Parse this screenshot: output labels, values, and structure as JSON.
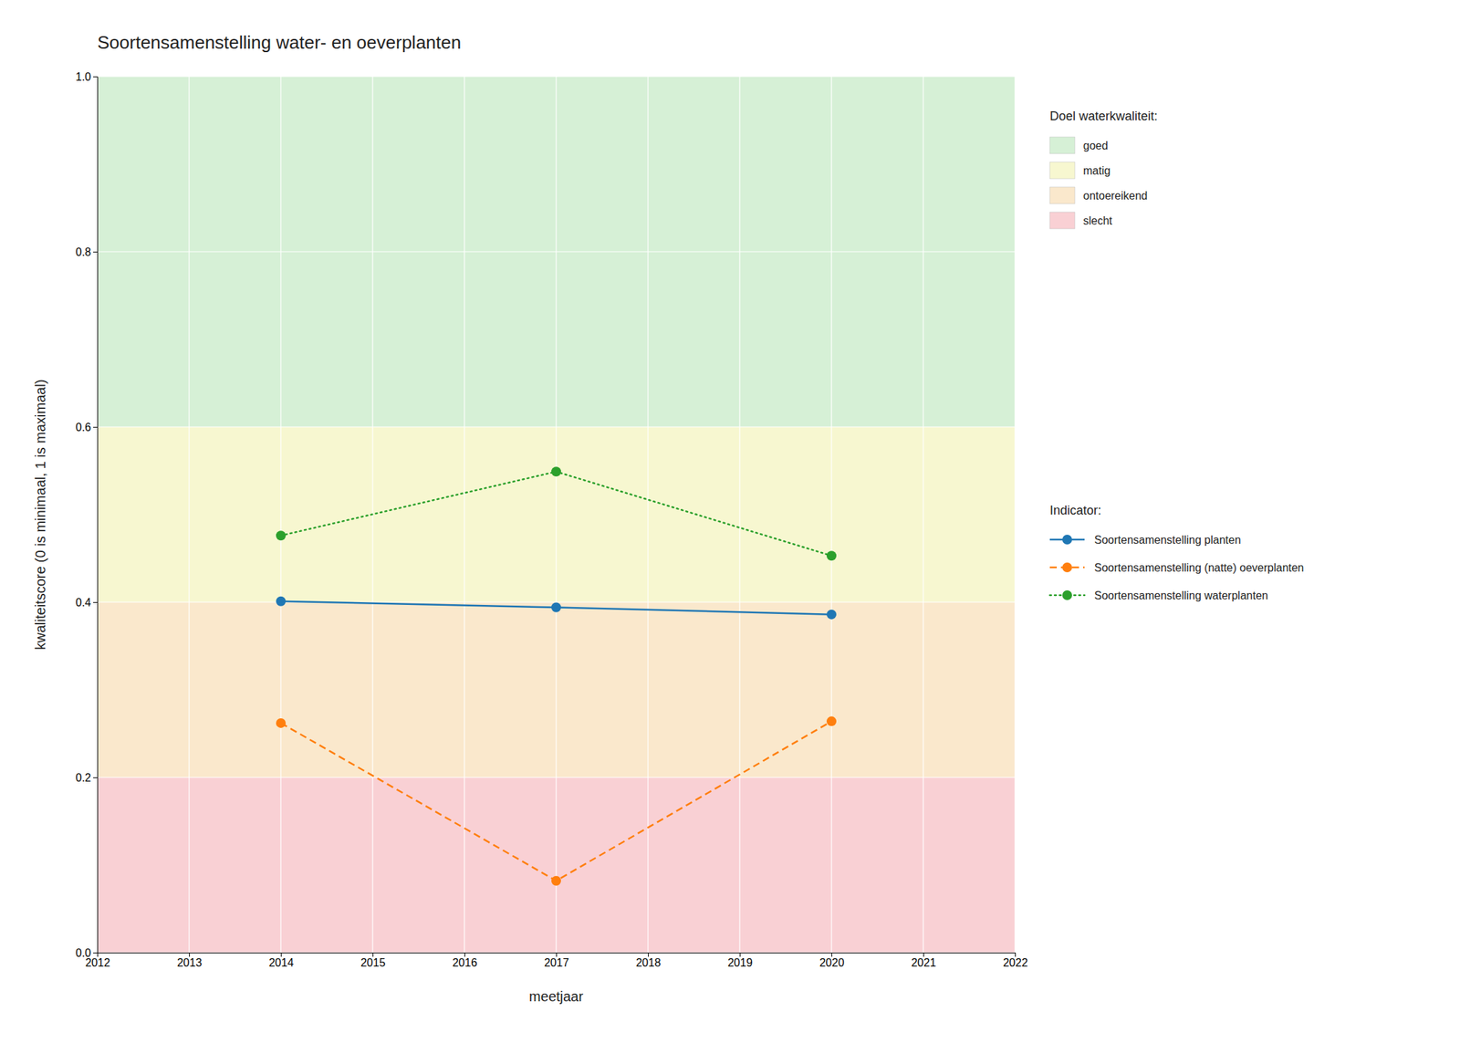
{
  "chart_data": {
    "type": "line",
    "title": "Soortensamenstelling water- en oeverplanten",
    "x_label": "meetjaar",
    "y_label": "kwaliteitscore (0 is minimaal, 1 is maximaal)",
    "xlim": [
      2012,
      2022
    ],
    "ylim": [
      0.0,
      1.0
    ],
    "xticks": [
      2012,
      2013,
      2014,
      2015,
      2016,
      2017,
      2018,
      2019,
      2020,
      2021,
      2022
    ],
    "yticks": [
      {
        "value": 0.0,
        "label": "0.0"
      },
      0.2,
      0.4,
      0.6,
      0.8,
      {
        "value": 1.0,
        "label": "1.0"
      }
    ],
    "grid": true,
    "legend": "right",
    "bands_title": "Doel waterkwaliteit:",
    "bands": [
      {
        "name": "goed",
        "color": "#d6f0d6",
        "range": [
          0.6,
          1.0
        ]
      },
      {
        "name": "matig",
        "color": "#f7f7d0",
        "range": [
          0.4,
          0.6
        ]
      },
      {
        "name": "ontoereikend",
        "color": "#fae8cc",
        "range": [
          0.2,
          0.4
        ]
      },
      {
        "name": "slecht",
        "color": "#f9d0d4",
        "range": [
          0.0,
          0.2
        ]
      }
    ],
    "series_title": "Indicator:",
    "series": [
      {
        "name": "Soortensamenstelling planten",
        "x": [
          2014,
          2017,
          2020
        ],
        "values": [
          0.401,
          0.394,
          0.386
        ],
        "line_style": "solid",
        "marker": "circle"
      },
      {
        "name": "Soortensamenstelling (natte) oeverplanten",
        "x": [
          2014,
          2017,
          2020
        ],
        "values": [
          0.262,
          0.082,
          0.264
        ],
        "line_style": "dashed",
        "marker": "circle"
      },
      {
        "name": "Soortensamenstelling waterplanten",
        "x": [
          2014,
          2017,
          2020
        ],
        "values": [
          0.476,
          0.549,
          0.453
        ],
        "line_style": "dotted",
        "marker": "circle"
      }
    ]
  }
}
